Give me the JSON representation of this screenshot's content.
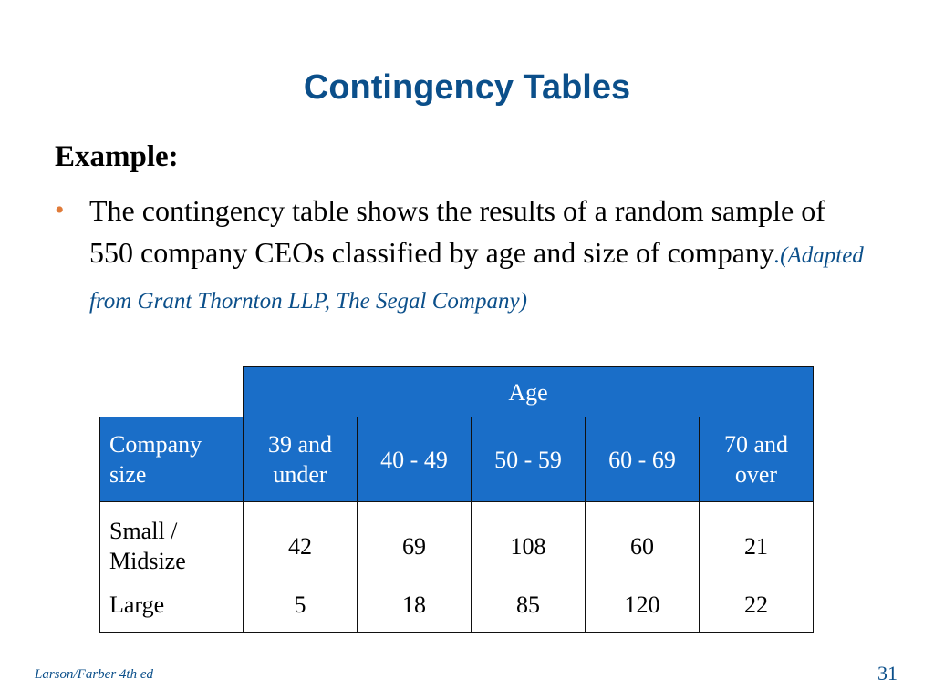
{
  "title": "Contingency Tables",
  "example_label": "Example:",
  "bullet": {
    "text": "The contingency table shows the results of a random sample of 550 company CEOs classified by age and size of company",
    "citation": ".(Adapted from Grant Thornton LLP, The Segal Company)"
  },
  "table": {
    "group_header": "Age",
    "row_header_label": "Company size",
    "columns": [
      "39 and under",
      "40 - 49",
      "50 - 59",
      "60 - 69",
      "70 and over"
    ],
    "rows": [
      {
        "label": "Small / Midsize",
        "values": [
          "42",
          "69",
          "108",
          "60",
          "21"
        ]
      },
      {
        "label": "Large",
        "values": [
          "5",
          "18",
          "85",
          "120",
          "22"
        ]
      }
    ]
  },
  "footer": {
    "source": "Larson/Farber 4th ed",
    "page_number": "31"
  },
  "colors": {
    "title": "#0b4f8a",
    "bullet": "#e07b39",
    "header_fill": "#1a6ec8"
  }
}
